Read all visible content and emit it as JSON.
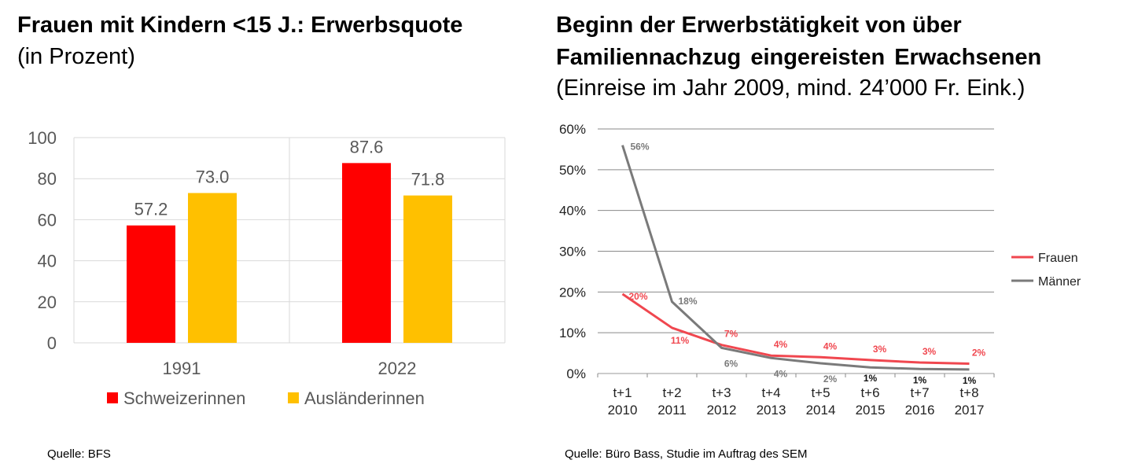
{
  "left": {
    "title": "Frauen mit Kindern <15 J.: Erwerbsquote",
    "subtitle": "(in Prozent)",
    "source": "Quelle: BFS"
  },
  "right": {
    "title_line1": "Beginn der Erwerbstätigkeit von über",
    "title_line2": "Familiennachzug eingereisten Erwachsenen",
    "subtitle": "(Einreise im Jahr 2009, mind. 24’000 Fr. Eink.)",
    "source": "Quelle: Büro Bass, Studie im Auftrag des SEM"
  },
  "colors": {
    "schweizerinnen": "#ff0000",
    "auslaenderinnen": "#ffc000",
    "frauen": "#f0474f",
    "maenner": "#7a7a7a",
    "grid": "#d9d9d9",
    "axis_text": "#595959"
  },
  "chart_data": [
    {
      "type": "bar",
      "categories": [
        "1991",
        "2022"
      ],
      "series": [
        {
          "name": "Schweizerinnen",
          "values": [
            57.2,
            87.6
          ],
          "labels": [
            "57.2",
            "87.6"
          ]
        },
        {
          "name": "Ausländerinnen",
          "values": [
            73.0,
            71.8
          ],
          "labels": [
            "73.0",
            "71.8"
          ]
        }
      ],
      "ylim": [
        0,
        100
      ],
      "yticks": [
        "0",
        "20",
        "40",
        "60",
        "80",
        "100"
      ],
      "legend": "bottom"
    },
    {
      "type": "line",
      "categories": [
        {
          "period": "t+1",
          "year": "2010"
        },
        {
          "period": "t+2",
          "year": "2011"
        },
        {
          "period": "t+3",
          "year": "2012"
        },
        {
          "period": "t+4",
          "year": "2013"
        },
        {
          "period": "t+5",
          "year": "2014"
        },
        {
          "period": "t+6",
          "year": "2015"
        },
        {
          "period": "t+7",
          "year": "2016"
        },
        {
          "period": "t+8",
          "year": "2017"
        }
      ],
      "series": [
        {
          "name": "Frauen",
          "values": [
            19.5,
            11.2,
            7.0,
            4.4,
            4.0,
            3.3,
            2.7,
            2.4
          ],
          "labels": [
            "20%",
            "11%",
            "7%",
            "4%",
            "4%",
            "3%",
            "3%",
            "2%"
          ]
        },
        {
          "name": "Männer",
          "values": [
            56.0,
            17.6,
            6.3,
            3.8,
            2.5,
            1.5,
            1.1,
            1.0
          ],
          "labels": [
            "56%",
            "18%",
            "6%",
            "4%",
            "2%",
            "1%",
            "1%",
            "1%"
          ]
        }
      ],
      "ylim": [
        0,
        60
      ],
      "yticks": [
        "0%",
        "10%",
        "20%",
        "30%",
        "40%",
        "50%",
        "60%"
      ],
      "legend": "right"
    }
  ]
}
